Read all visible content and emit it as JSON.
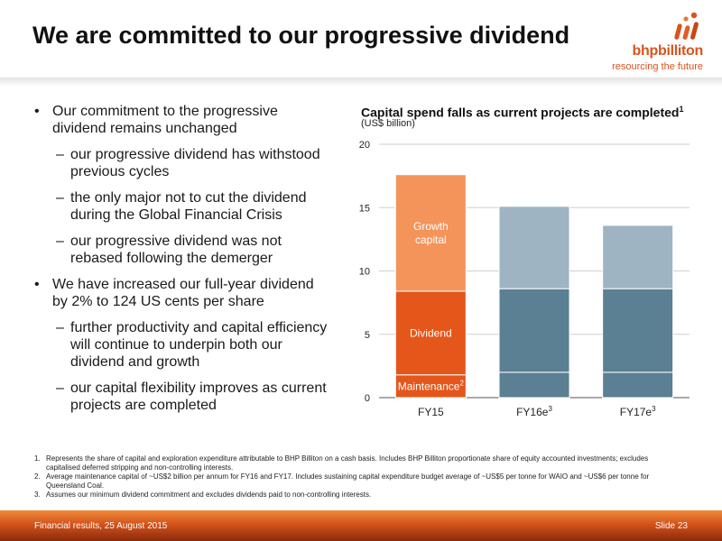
{
  "header": {
    "title": "We are committed to our progressive dividend"
  },
  "logo": {
    "wordmark": "bhpbilliton",
    "tagline": "resourcing the future"
  },
  "bullets": [
    {
      "text": "Our commitment to the progressive dividend remains unchanged",
      "subs": [
        "our progressive dividend has withstood previous cycles",
        "the only major not to cut the dividend during the Global Financial Crisis",
        "our progressive dividend was not rebased following the demerger"
      ]
    },
    {
      "text": "We have increased our full-year dividend by 2% to 124 US cents per share",
      "subs": [
        "further productivity and capital efficiency will continue to underpin both our dividend and growth",
        "our capital flexibility improves as current projects are completed"
      ]
    }
  ],
  "chart_data": {
    "type": "bar",
    "stacked": true,
    "title": "Capital spend falls as current projects are completed",
    "title_note": "1",
    "subtitle": "(US$ billion)",
    "categories": [
      "FY15",
      "FY16e",
      "FY17e"
    ],
    "category_notes": [
      "",
      "3",
      "3"
    ],
    "ylim": [
      0,
      20
    ],
    "yticks": [
      0,
      5,
      10,
      15,
      20
    ],
    "grid": true,
    "series": [
      {
        "name": "Maintenance",
        "note": "2",
        "values": [
          1.8,
          2.0,
          2.0
        ],
        "colors": [
          "#e5561b",
          "#5b7f93",
          "#5b7f93"
        ]
      },
      {
        "name": "Dividend",
        "values": [
          6.6,
          6.6,
          6.6
        ],
        "colors": [
          "#e5561b",
          "#5b7f93",
          "#5b7f93"
        ]
      },
      {
        "name": "Growth capital",
        "values": [
          9.2,
          6.5,
          5.0
        ],
        "colors": [
          "#f4945a",
          "#9fb4c2",
          "#9fb4c2"
        ]
      }
    ],
    "segment_labels": [
      {
        "series": 0,
        "category": 0,
        "text": "Maintenance",
        "note": "2"
      },
      {
        "series": 1,
        "category": 0,
        "text": "Dividend"
      },
      {
        "series": 2,
        "category": 0,
        "lines": [
          "Growth",
          "capital"
        ]
      }
    ]
  },
  "footnotes": [
    {
      "num": "1.",
      "text": "Represents the share of capital and exploration expenditure attributable to BHP Billiton on a cash basis. Includes BHP Billiton proportionate share of equity accounted investments; excludes capitalised deferred stripping and non-controlling interests."
    },
    {
      "num": "2.",
      "text": "Average maintenance capital of ~US$2 billion per annum for FY16 and FY17. Includes sustaining capital expenditure budget average of ~US$5 per tonne for WAIO and ~US$6 per tonne for Queensland Coal."
    },
    {
      "num": "3.",
      "text": "Assumes our minimum dividend commitment and excludes dividends paid to non-controlling interests."
    }
  ],
  "footer": {
    "left": "Financial results, 25 August 2015",
    "right": "Slide 23"
  }
}
